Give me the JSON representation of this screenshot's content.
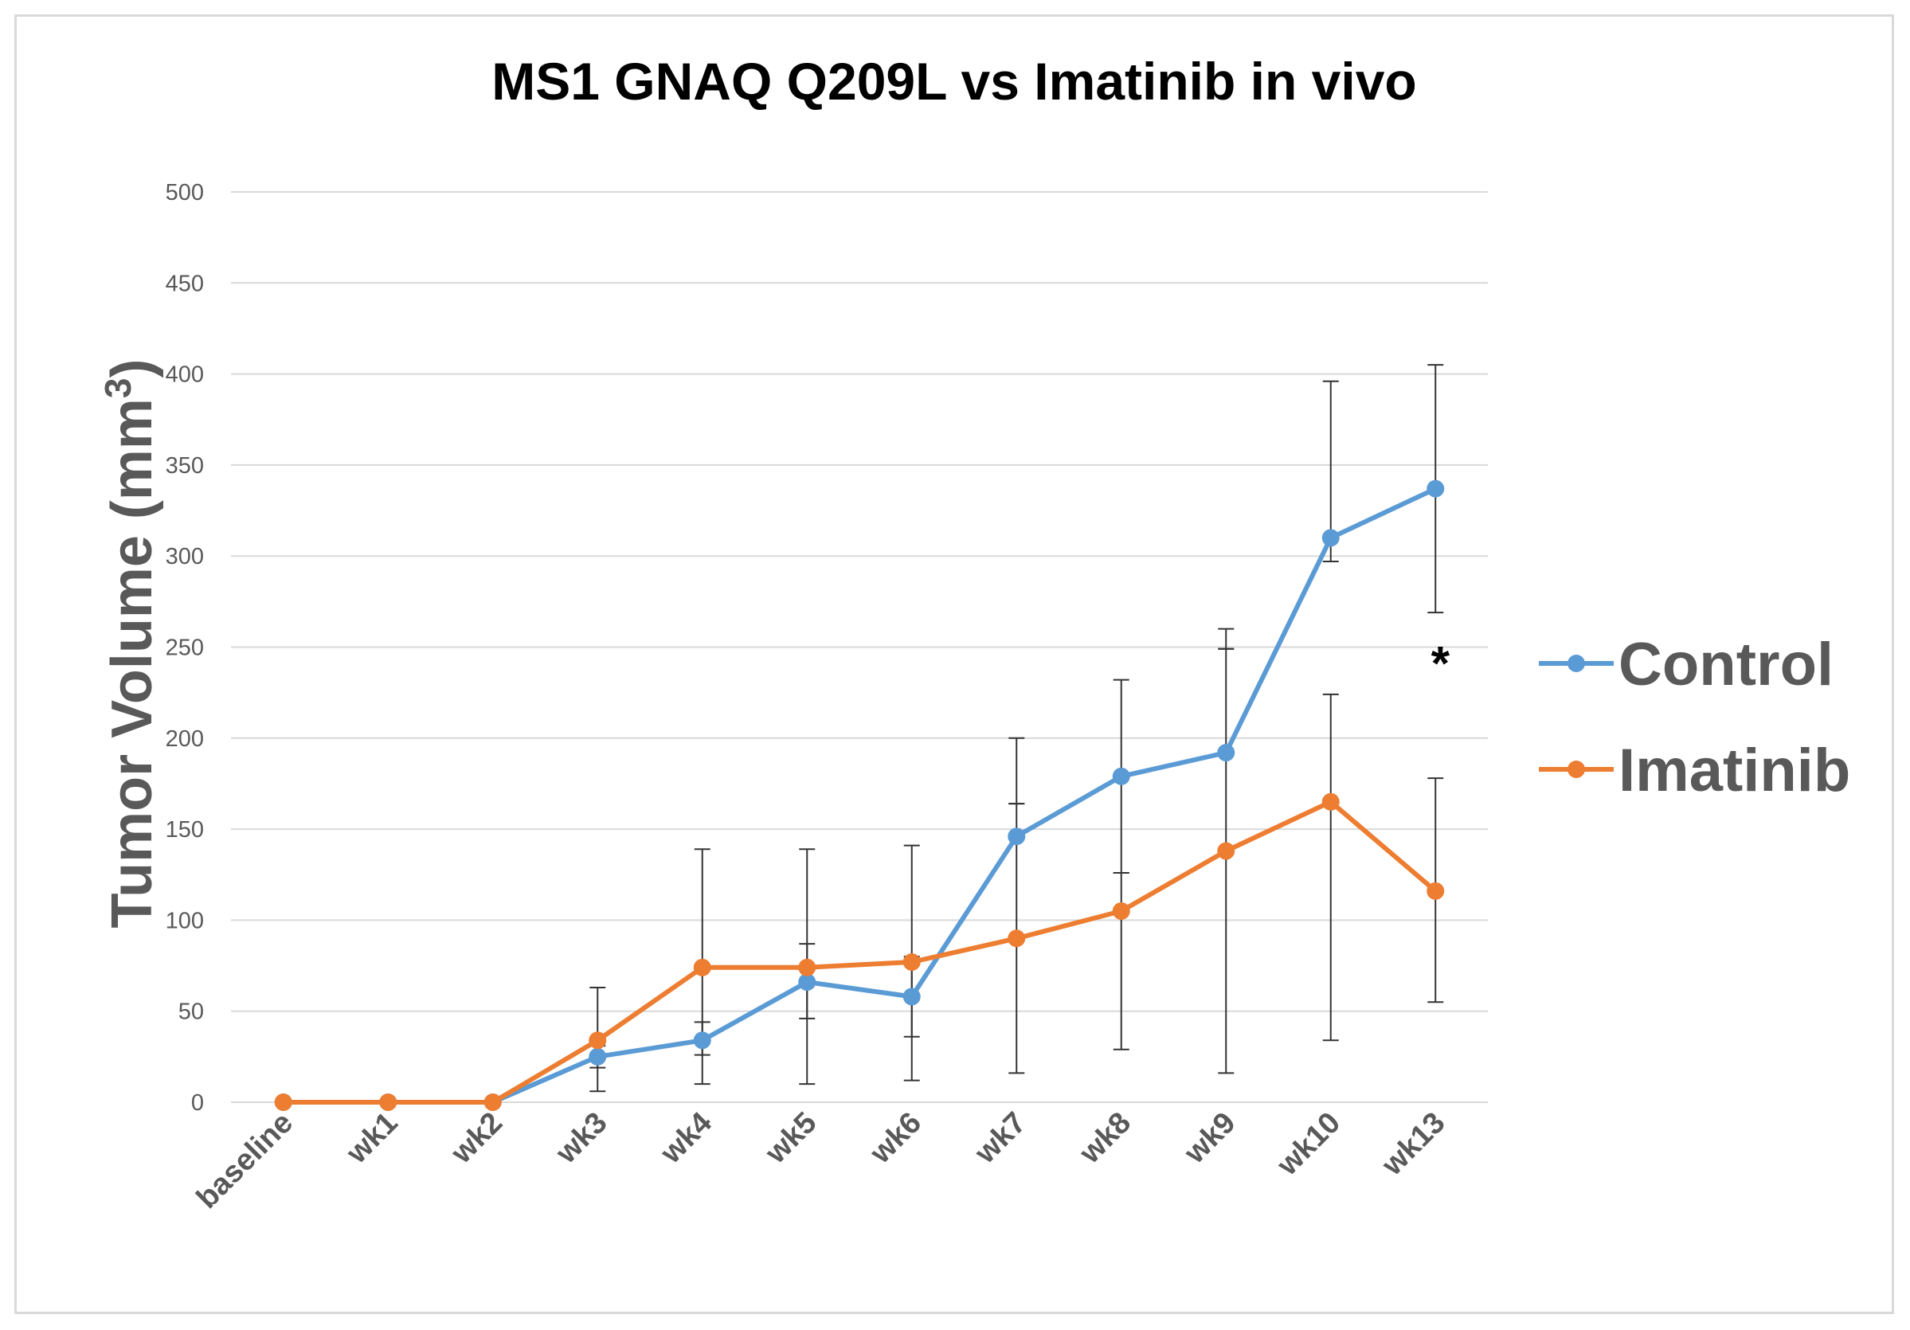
{
  "chart_data": {
    "type": "line",
    "title": "MS1 GNAQ Q209L vs Imatinib in vivo",
    "ylabel_main": "Tumor Volume (mm",
    "ylabel_sup": "3",
    "ylabel_close": ")",
    "xlabel": "",
    "ylim": [
      0,
      500
    ],
    "yticks": [
      0,
      50,
      100,
      150,
      200,
      250,
      300,
      350,
      400,
      450,
      500
    ],
    "categories": [
      "baseline",
      "wk1",
      "wk2",
      "wk3",
      "wk4",
      "wk5",
      "wk6",
      "wk7",
      "wk8",
      "wk9",
      "wk10",
      "wk13"
    ],
    "legend_position": "right",
    "grid": true,
    "annotation": {
      "text": "*",
      "category": "wk13",
      "value": 240
    },
    "series": [
      {
        "name": "Control",
        "color": "#5B9BD5",
        "values": [
          0,
          0,
          0,
          25,
          34,
          66,
          58,
          146,
          179,
          192,
          310,
          337
        ],
        "error_lower": [
          0,
          0,
          0,
          19,
          26,
          46,
          36,
          164,
          126,
          249,
          297,
          269
        ],
        "error_upper": [
          0,
          0,
          0,
          31,
          44,
          87,
          80,
          200,
          232,
          260,
          396,
          405
        ]
      },
      {
        "name": "Imatinib",
        "color": "#ED7D31",
        "values": [
          0,
          0,
          0,
          34,
          74,
          74,
          77,
          90,
          105,
          138,
          165,
          116
        ],
        "error_lower": [
          0,
          0,
          0,
          6,
          10,
          10,
          12,
          16,
          29,
          16,
          34,
          55
        ],
        "error_upper": [
          0,
          0,
          0,
          63,
          139,
          139,
          141,
          164,
          126,
          249,
          224,
          178
        ]
      }
    ]
  }
}
